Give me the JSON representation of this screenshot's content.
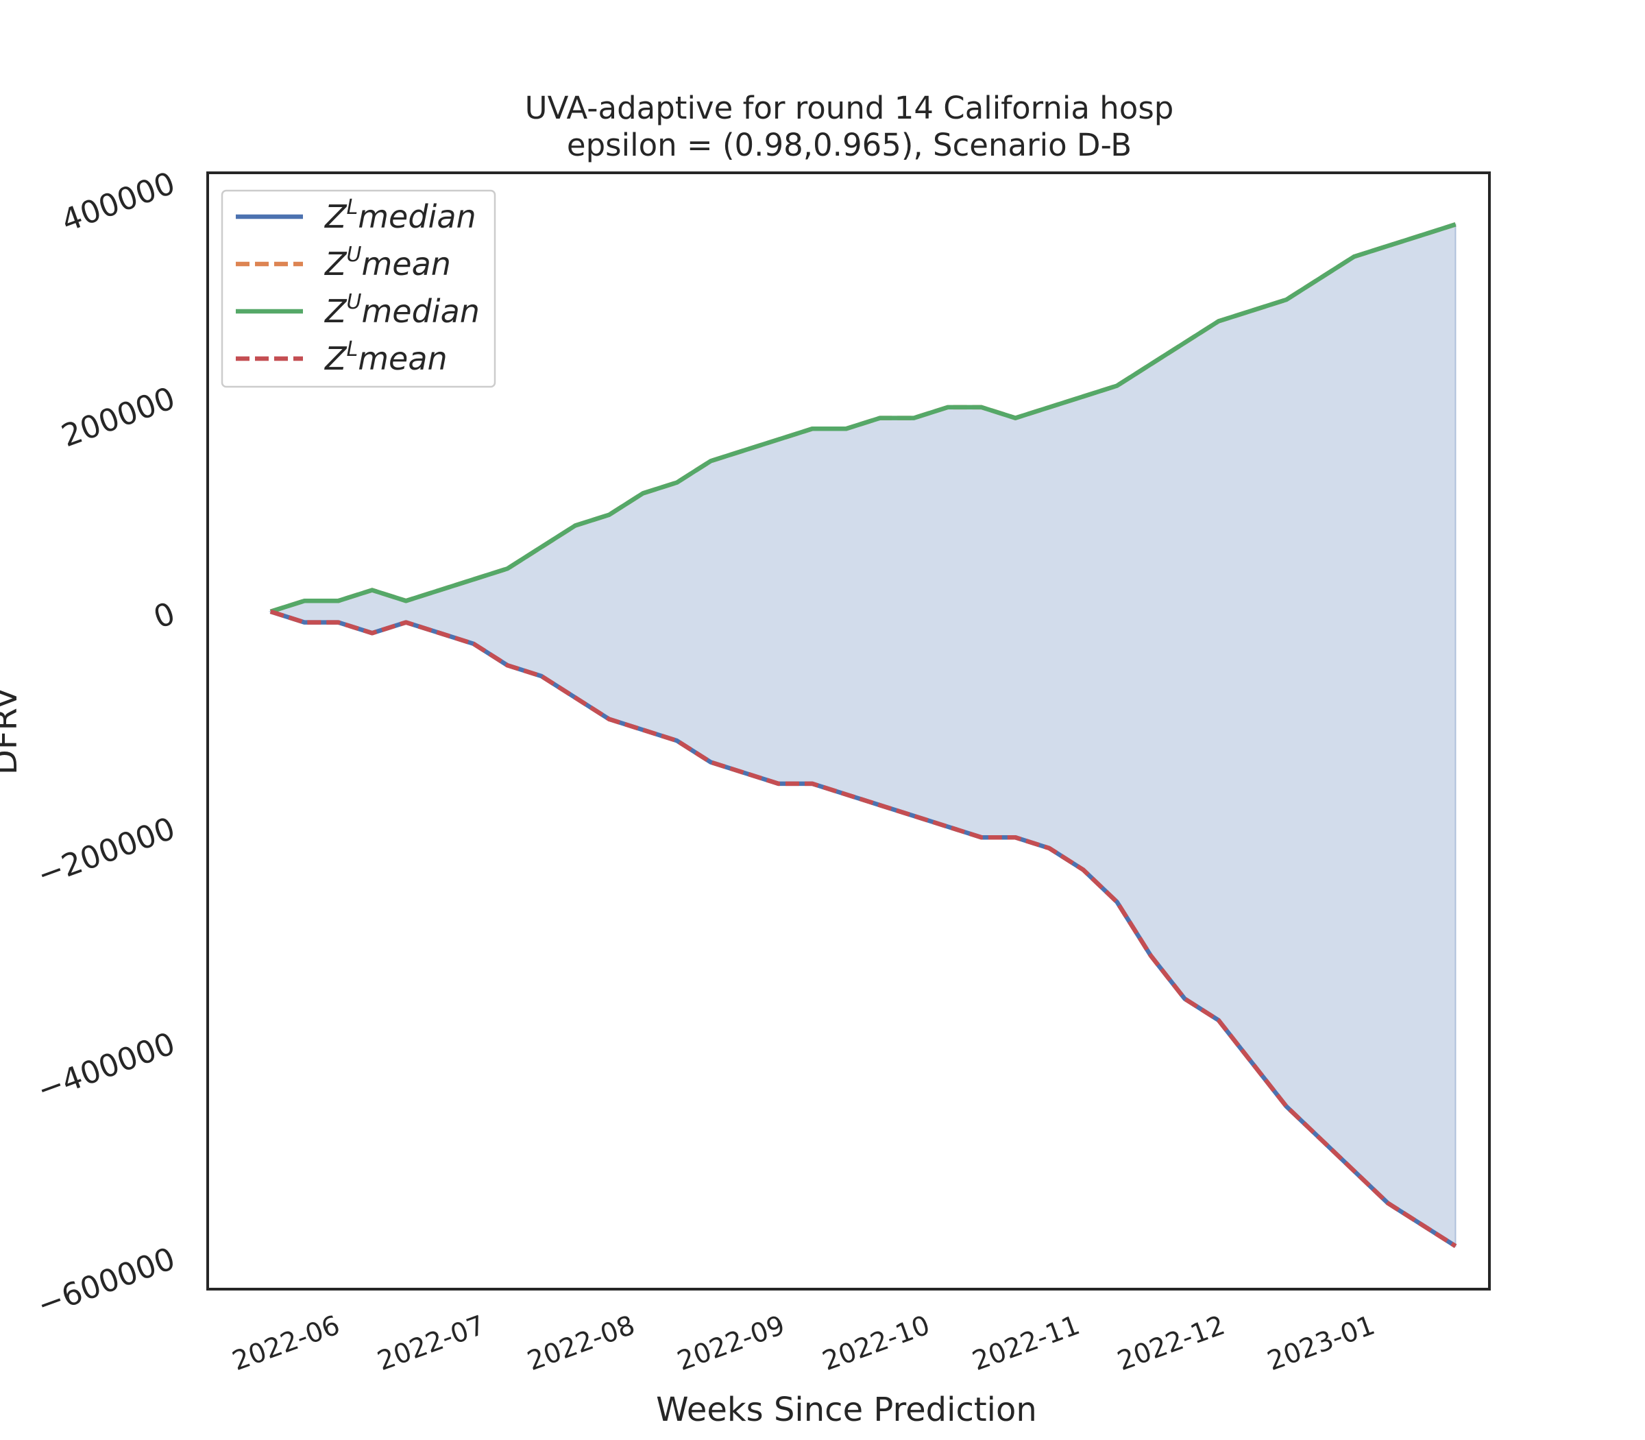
{
  "chart_data": {
    "type": "area",
    "title": "UVA-adaptive for round 14 California  hosp",
    "subtitle": "epsilon = (0.98,0.965), Scenario D-B",
    "xlabel": "Weeks Since Prediction",
    "ylabel": "DFRV",
    "ylim": [
      -630000,
      408000
    ],
    "yticks": [
      400000,
      200000,
      0,
      -200000,
      -400000,
      -600000
    ],
    "ytick_labels": [
      "400000",
      "200000",
      "0",
      "−200000",
      "−400000",
      "−600000"
    ],
    "xlim": [
      "2022-05-05",
      "2023-01-25"
    ],
    "xticks": [
      "2022-06-01",
      "2022-07-01",
      "2022-08-01",
      "2022-09-01",
      "2022-10-01",
      "2022-11-01",
      "2022-12-01",
      "2023-01-01"
    ],
    "xtick_labels": [
      "2022-06",
      "2022-07",
      "2022-08",
      "2022-09",
      "2022-10",
      "2022-11",
      "2022-12",
      "2023-01"
    ],
    "grid": false,
    "legend_position": "upper-left",
    "x": [
      "2022-05-18",
      "2022-05-25",
      "2022-06-01",
      "2022-06-08",
      "2022-06-15",
      "2022-06-22",
      "2022-06-29",
      "2022-07-06",
      "2022-07-13",
      "2022-07-20",
      "2022-07-27",
      "2022-08-03",
      "2022-08-10",
      "2022-08-17",
      "2022-08-24",
      "2022-08-31",
      "2022-09-07",
      "2022-09-14",
      "2022-09-21",
      "2022-09-28",
      "2022-10-05",
      "2022-10-12",
      "2022-10-19",
      "2022-10-26",
      "2022-11-02",
      "2022-11-09",
      "2022-11-16",
      "2022-11-23",
      "2022-11-30",
      "2022-12-07",
      "2022-12-14",
      "2022-12-21",
      "2022-12-28",
      "2023-01-04",
      "2023-01-11",
      "2023-01-18"
    ],
    "series": [
      {
        "name": "median",
        "legend_sup": "L",
        "color": "#4c72b0",
        "style": "solid",
        "values": [
          0,
          -10000,
          -10000,
          -20000,
          -10000,
          -20000,
          -30000,
          -50000,
          -60000,
          -80000,
          -100000,
          -110000,
          -120000,
          -140000,
          -150000,
          -160000,
          -160000,
          -170000,
          -180000,
          -190000,
          -200000,
          -210000,
          -210000,
          -220000,
          -240000,
          -270000,
          -320000,
          -360000,
          -380000,
          -420000,
          -460000,
          -490000,
          -520000,
          -550000,
          -570000,
          -590000
        ]
      },
      {
        "name": "mean",
        "legend_sup": "U",
        "color": "#dd8452",
        "style": "dashed",
        "values": [
          0,
          10000,
          10000,
          20000,
          10000,
          20000,
          30000,
          40000,
          60000,
          80000,
          90000,
          110000,
          120000,
          140000,
          150000,
          160000,
          170000,
          170000,
          180000,
          180000,
          190000,
          190000,
          180000,
          190000,
          200000,
          210000,
          230000,
          250000,
          270000,
          280000,
          290000,
          310000,
          330000,
          340000,
          350000,
          360000
        ]
      },
      {
        "name": "median",
        "legend_sup": "U",
        "color": "#55a868",
        "style": "solid",
        "values": [
          0,
          10000,
          10000,
          20000,
          10000,
          20000,
          30000,
          40000,
          60000,
          80000,
          90000,
          110000,
          120000,
          140000,
          150000,
          160000,
          170000,
          170000,
          180000,
          180000,
          190000,
          190000,
          180000,
          190000,
          200000,
          210000,
          230000,
          250000,
          270000,
          280000,
          290000,
          310000,
          330000,
          340000,
          350000,
          360000
        ]
      },
      {
        "name": "mean",
        "legend_sup": "L",
        "color": "#c44e52",
        "style": "dashed",
        "values": [
          0,
          -10000,
          -10000,
          -20000,
          -10000,
          -20000,
          -30000,
          -50000,
          -60000,
          -80000,
          -100000,
          -110000,
          -120000,
          -140000,
          -150000,
          -160000,
          -160000,
          -170000,
          -180000,
          -190000,
          -200000,
          -210000,
          -210000,
          -220000,
          -240000,
          -270000,
          -320000,
          -360000,
          -380000,
          -420000,
          -460000,
          -490000,
          -520000,
          -550000,
          -570000,
          -590000
        ]
      }
    ],
    "fill_color": "#4c72b0",
    "fill_opacity": 0.25
  }
}
